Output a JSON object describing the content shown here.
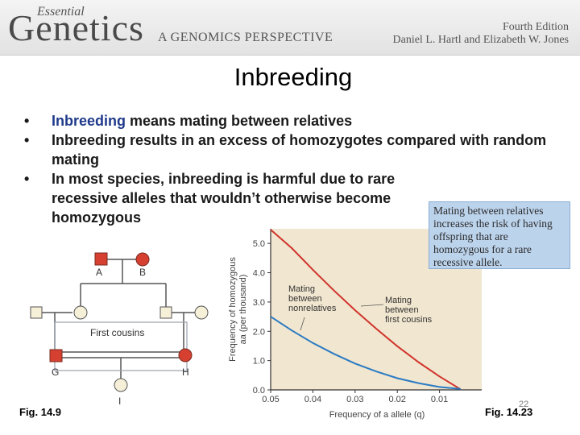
{
  "header": {
    "logo_essential": "Essential",
    "logo_genetics": "Genetics",
    "logo_subtitle": "A GENOMICS PERSPECTIVE",
    "edition": "Fourth Edition",
    "authors": "Daniel L. Hartl and Elizabeth W. Jones"
  },
  "slide": {
    "title": "Inbreeding",
    "bullets": [
      {
        "keyword": "Inbreeding",
        "text": " means mating between relatives"
      },
      {
        "text": "Inbreeding results in an excess of homozygotes compared with random mating"
      },
      {
        "text": "In most species, inbreeding is harmful due to rare recessive alleles that wouldn’t otherwise become homozygous"
      }
    ],
    "bullet_char": "•",
    "fig_left": "Fig. 14.9",
    "fig_right": "Fig. 14.23",
    "slide_number": "22"
  },
  "pedigree": {
    "labels": {
      "a": "A",
      "b": "B",
      "g": "G",
      "h": "H",
      "i": "I"
    },
    "caption": "First cousins",
    "colors": {
      "affected": "#d64030",
      "carrier": "#f6f0d8",
      "line": "#555555",
      "grid": "#9aa2ad"
    }
  },
  "callout": {
    "text": "Mating between relatives increases the risk of having offspring that are homozygous for a rare recessive allele."
  },
  "chart_data": {
    "type": "line",
    "title": "",
    "ylabel_line1": "Frequency of homozygous",
    "ylabel_line2": "aa (per thousand)",
    "xlabel": "Frequency of a allele (q)",
    "xlim": [
      0.05,
      0
    ],
    "ylim": [
      0,
      5.5
    ],
    "xticks": [
      0.05,
      0.04,
      0.03,
      0.02,
      0.01
    ],
    "yticks": [
      0.0,
      1.0,
      2.0,
      3.0,
      4.0,
      5.0
    ],
    "xtick_labels": [
      "0.05",
      "0.04",
      "0.03",
      "0.02",
      "0.01"
    ],
    "ytick_labels": [
      "0.0",
      "1.0",
      "2.0",
      "3.0",
      "4.0",
      "5.0"
    ],
    "series": [
      {
        "name": "Mating between first cousins",
        "label_lines": [
          "Mating",
          "between",
          "first cousins"
        ],
        "color": "#d0342c",
        "x": [
          0.05,
          0.045,
          0.04,
          0.035,
          0.03,
          0.025,
          0.02,
          0.015,
          0.01,
          0.005
        ],
        "y": [
          5.47,
          4.84,
          4.1,
          3.39,
          2.72,
          2.09,
          1.49,
          0.95,
          0.46,
          0.02
        ]
      },
      {
        "name": "Mating between nonrelatives",
        "label_lines": [
          "Mating",
          "between",
          "nonrelatives"
        ],
        "color": "#2a7bc4",
        "x": [
          0.05,
          0.045,
          0.04,
          0.035,
          0.03,
          0.025,
          0.02,
          0.015,
          0.01,
          0.005
        ],
        "y": [
          2.5,
          2.03,
          1.6,
          1.23,
          0.9,
          0.63,
          0.4,
          0.23,
          0.1,
          0.03
        ]
      }
    ],
    "background": "#f1e6cf",
    "grid": false
  }
}
